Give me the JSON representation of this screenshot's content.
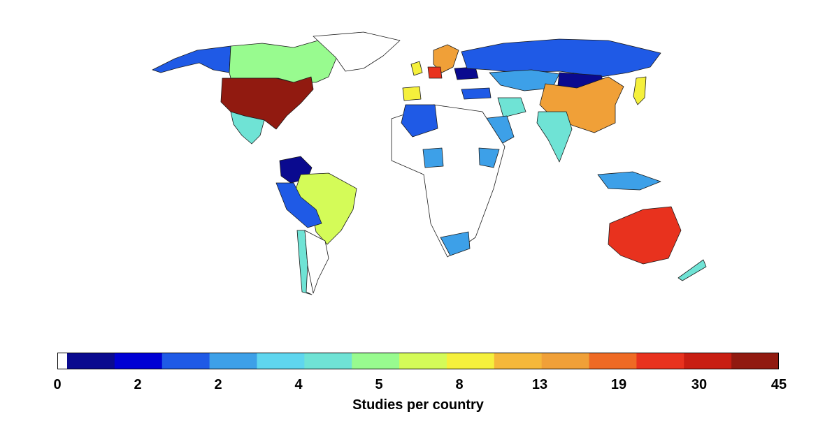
{
  "map": {
    "colorbar_title": "Studies per country",
    "colorbar_ticks": [
      "0",
      "2",
      "2",
      "4",
      "5",
      "8",
      "13",
      "19",
      "30",
      "45"
    ],
    "colors": {
      "zero": "#ffffff",
      "dark_blue": "#0a0a8f",
      "blue": "#1f5ae6",
      "light_blue": "#3da0e8",
      "cyan": "#6fe3d5",
      "green": "#98fb8f",
      "yellow_green": "#d4fb58",
      "yellow": "#f5f03c",
      "orange": "#f0a038",
      "red": "#e8321e",
      "dark_red": "#911a10"
    },
    "colormap": [
      "#ffffff",
      "#0a0a8f",
      "#0000d4",
      "#1f5ae6",
      "#3da0e8",
      "#5fd6ef",
      "#6fe3d5",
      "#98fb8f",
      "#d4fb58",
      "#f5f03c",
      "#f5b83a",
      "#f0a038",
      "#ef6a24",
      "#e8321e",
      "#c81e12",
      "#911a10"
    ],
    "regions": [
      {
        "name": "USA",
        "color": "dark_red"
      },
      {
        "name": "Canada",
        "color": "green"
      },
      {
        "name": "Mexico",
        "color": "cyan"
      },
      {
        "name": "Brazil",
        "color": "yellow_green"
      },
      {
        "name": "China",
        "color": "orange"
      },
      {
        "name": "Russia",
        "color": "blue"
      },
      {
        "name": "Australia",
        "color": "red"
      },
      {
        "name": "India",
        "color": "cyan"
      },
      {
        "name": "Kazakhstan",
        "color": "light_blue"
      },
      {
        "name": "Mongolia",
        "color": "dark_blue"
      },
      {
        "name": "Scandinavia",
        "color": "orange"
      },
      {
        "name": "Germany",
        "color": "red"
      },
      {
        "name": "United Kingdom",
        "color": "yellow"
      },
      {
        "name": "Spain",
        "color": "yellow"
      },
      {
        "name": "Japan",
        "color": "yellow"
      },
      {
        "name": "Saudi Arabia",
        "color": "light_blue"
      },
      {
        "name": "Algeria",
        "color": "blue"
      },
      {
        "name": "Nigeria",
        "color": "light_blue"
      },
      {
        "name": "Ethiopia",
        "color": "light_blue"
      },
      {
        "name": "South Africa",
        "color": "light_blue"
      },
      {
        "name": "Peru",
        "color": "blue"
      },
      {
        "name": "Colombia",
        "color": "dark_blue"
      },
      {
        "name": "Chile",
        "color": "cyan"
      },
      {
        "name": "Argentina",
        "color": "zero"
      },
      {
        "name": "New Zealand",
        "color": "cyan"
      },
      {
        "name": "Indonesia",
        "color": "light_blue"
      },
      {
        "name": "Iran",
        "color": "cyan"
      },
      {
        "name": "Turkey",
        "color": "blue"
      },
      {
        "name": "Ukraine",
        "color": "dark_blue"
      },
      {
        "name": "Greenland",
        "color": "zero"
      },
      {
        "name": "Africa (other)",
        "color": "zero"
      }
    ]
  }
}
